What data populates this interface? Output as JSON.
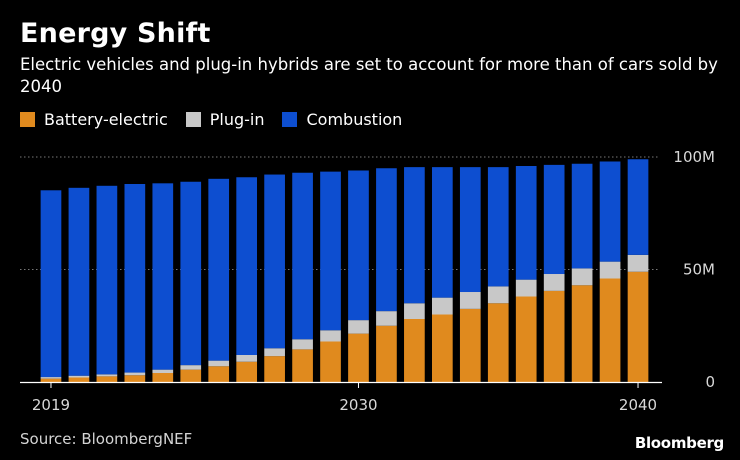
{
  "title": "Energy Shift",
  "subtitle": "Electric vehicles and plug-in hybrids are set to account for more than of cars sold by 2040",
  "source": "Source: BloombergNEF",
  "brand": "Bloomberg",
  "colors": {
    "battery": "#e08a1e",
    "plugin": "#c8c8c8",
    "combustion": "#0d4ed0",
    "grid": "#777777",
    "axis": "#ffffff",
    "tick_label": "#d8d8d8"
  },
  "legend": [
    {
      "label": "Battery-electric",
      "color": "#e08a1e"
    },
    {
      "label": "Plug-in",
      "color": "#c8c8c8"
    },
    {
      "label": "Combustion",
      "color": "#0d4ed0"
    }
  ],
  "chart_data": {
    "type": "bar",
    "stacked": true,
    "categories": [
      2019,
      2020,
      2021,
      2022,
      2023,
      2024,
      2025,
      2026,
      2027,
      2028,
      2029,
      2030,
      2031,
      2032,
      2033,
      2034,
      2035,
      2036,
      2037,
      2038,
      2039,
      2040
    ],
    "series": [
      {
        "name": "Battery-electric",
        "values": [
          1.5,
          2,
          2.5,
          3,
          4,
          5.5,
          7,
          9,
          11.5,
          14.5,
          18,
          21.5,
          25,
          28,
          30,
          32.5,
          35,
          38,
          40.5,
          43,
          46,
          49
        ]
      },
      {
        "name": "Plug-in",
        "values": [
          0.7,
          0.8,
          0.9,
          1.2,
          1.5,
          2,
          2.5,
          3,
          3.5,
          4.5,
          5,
          6,
          6.5,
          7,
          7.5,
          7.5,
          7.5,
          7.5,
          7.5,
          7.5,
          7.5,
          7.5
        ]
      },
      {
        "name": "Combustion",
        "values": [
          83,
          83.5,
          83.8,
          83.8,
          82.8,
          81.5,
          80.8,
          79,
          77.2,
          74,
          70.5,
          66.5,
          63.5,
          60.5,
          58,
          55.5,
          53,
          50.5,
          48.5,
          46.5,
          44.5,
          42.5
        ]
      }
    ],
    "y_ticks": [
      {
        "value": 0,
        "label": "0"
      },
      {
        "value": 50,
        "label": "50M"
      },
      {
        "value": 100,
        "label": "100M"
      }
    ],
    "x_ticks": [
      {
        "value": 2019,
        "label": "2019"
      },
      {
        "value": 2030,
        "label": "2030"
      },
      {
        "value": 2040,
        "label": "2040"
      }
    ],
    "ylim": [
      0,
      100
    ],
    "y_unit": "M",
    "grid": true,
    "legend_position": "top-left"
  }
}
